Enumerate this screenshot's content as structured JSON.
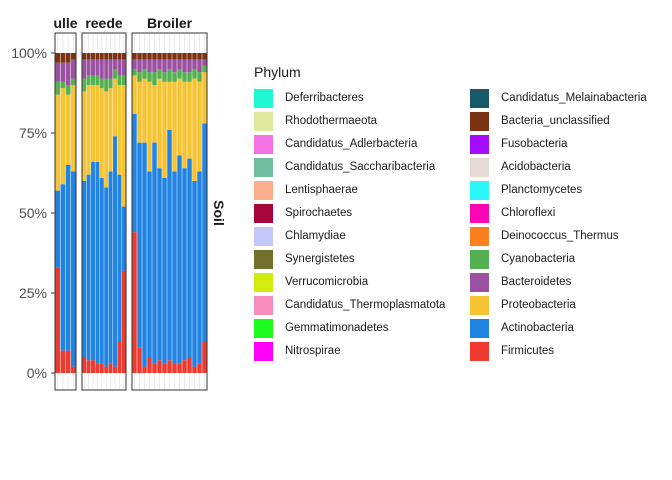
{
  "chart_data": {
    "type": "bar",
    "stacked": true,
    "facet_labels": [
      "ulle",
      "reede",
      "Broiler"
    ],
    "strip_label_right": "Soil",
    "y_ticks": [
      "0%",
      "25%",
      "50%",
      "75%",
      "100%"
    ],
    "ylim": [
      0,
      100
    ],
    "legend_title": "Phylum",
    "legend_position": "right",
    "phyla": [
      {
        "name": "Deferribacteres",
        "color": "#1FF8D3"
      },
      {
        "name": "Rhodothermaeota",
        "color": "#DFE89D"
      },
      {
        "name": "Candidatus_Adlerbacteria",
        "color": "#F372E4"
      },
      {
        "name": "Candidatus_Saccharibacteria",
        "color": "#71BEA3"
      },
      {
        "name": "Lentisphaerae",
        "color": "#F9AF8E"
      },
      {
        "name": "Spirochaetes",
        "color": "#A6063B"
      },
      {
        "name": "Chlamydiae",
        "color": "#C4C8F8"
      },
      {
        "name": "Synergistetes",
        "color": "#726F2C"
      },
      {
        "name": "Verrucomicrobia",
        "color": "#D2EC0D"
      },
      {
        "name": "Candidatus_Thermoplasmatota",
        "color": "#F58CBC"
      },
      {
        "name": "Gemmatimonadetes",
        "color": "#1EFB1F"
      },
      {
        "name": "Nitrospirae",
        "color": "#FF00F7"
      },
      {
        "name": "Candidatus_Melainabacteria",
        "color": "#175966"
      },
      {
        "name": "Bacteria_unclassified",
        "color": "#7A3213"
      },
      {
        "name": "Fusobacteria",
        "color": "#A20CFB"
      },
      {
        "name": "Acidobacteria",
        "color": "#E5DAD5"
      },
      {
        "name": "Planctomycetes",
        "color": "#2CF7FB"
      },
      {
        "name": "Chloroflexi",
        "color": "#FC05B5"
      },
      {
        "name": "Deinococcus_Thermus",
        "color": "#FB7E1F"
      },
      {
        "name": "Cyanobacteria",
        "color": "#55B052"
      },
      {
        "name": "Bacteroidetes",
        "color": "#9B52A2"
      },
      {
        "name": "Proteobacteria",
        "color": "#F6C333"
      },
      {
        "name": "Actinobacteria",
        "color": "#2284E2"
      },
      {
        "name": "Firmicutes",
        "color": "#EE3A2F"
      }
    ],
    "facets": [
      {
        "samples": [
          {
            "Firmicutes": 33,
            "Actinobacteria": 24,
            "Proteobacteria": 30,
            "Cyanobacteria": 4,
            "Bacteroidetes": 6,
            "Other": 3
          },
          {
            "Firmicutes": 7,
            "Actinobacteria": 52,
            "Proteobacteria": 30,
            "Cyanobacteria": 2,
            "Bacteroidetes": 6,
            "Other": 3
          },
          {
            "Firmicutes": 7,
            "Actinobacteria": 58,
            "Proteobacteria": 22,
            "Cyanobacteria": 3,
            "Bacteroidetes": 7,
            "Other": 3
          },
          {
            "Firmicutes": 2,
            "Actinobacteria": 61,
            "Proteobacteria": 27,
            "Cyanobacteria": 2,
            "Bacteroidetes": 6,
            "Other": 2
          }
        ]
      },
      {
        "samples": [
          {
            "Firmicutes": 5,
            "Actinobacteria": 55,
            "Proteobacteria": 28,
            "Cyanobacteria": 4,
            "Bacteroidetes": 6,
            "Other": 2
          },
          {
            "Firmicutes": 4,
            "Actinobacteria": 58,
            "Proteobacteria": 28,
            "Cyanobacteria": 3,
            "Bacteroidetes": 5,
            "Other": 2
          },
          {
            "Firmicutes": 4,
            "Actinobacteria": 62,
            "Proteobacteria": 24,
            "Cyanobacteria": 3,
            "Bacteroidetes": 5,
            "Other": 2
          },
          {
            "Firmicutes": 3,
            "Actinobacteria": 63,
            "Proteobacteria": 24,
            "Cyanobacteria": 3,
            "Bacteroidetes": 5,
            "Other": 2
          },
          {
            "Firmicutes": 3,
            "Actinobacteria": 58,
            "Proteobacteria": 28,
            "Cyanobacteria": 3,
            "Bacteroidetes": 6,
            "Other": 2
          },
          {
            "Firmicutes": 2,
            "Actinobacteria": 56,
            "Proteobacteria": 30,
            "Cyanobacteria": 4,
            "Bacteroidetes": 6,
            "Other": 2
          },
          {
            "Firmicutes": 3,
            "Actinobacteria": 60,
            "Proteobacteria": 26,
            "Cyanobacteria": 3,
            "Bacteroidetes": 6,
            "Other": 2
          },
          {
            "Firmicutes": 2,
            "Actinobacteria": 72,
            "Proteobacteria": 18,
            "Cyanobacteria": 3,
            "Bacteroidetes": 3,
            "Other": 2
          },
          {
            "Firmicutes": 10,
            "Actinobacteria": 52,
            "Proteobacteria": 28,
            "Cyanobacteria": 3,
            "Bacteroidetes": 5,
            "Other": 2
          },
          {
            "Firmicutes": 32,
            "Actinobacteria": 20,
            "Proteobacteria": 38,
            "Cyanobacteria": 3,
            "Bacteroidetes": 5,
            "Other": 2
          }
        ]
      },
      {
        "samples": [
          {
            "Firmicutes": 44,
            "Actinobacteria": 37,
            "Proteobacteria": 12,
            "Cyanobacteria": 2,
            "Bacteroidetes": 3,
            "Other": 2
          },
          {
            "Firmicutes": 8,
            "Actinobacteria": 64,
            "Proteobacteria": 19,
            "Cyanobacteria": 3,
            "Bacteroidetes": 4,
            "Other": 2
          },
          {
            "Firmicutes": 2,
            "Actinobacteria": 70,
            "Proteobacteria": 20,
            "Cyanobacteria": 3,
            "Bacteroidetes": 3,
            "Other": 2
          },
          {
            "Firmicutes": 5,
            "Actinobacteria": 58,
            "Proteobacteria": 28,
            "Cyanobacteria": 3,
            "Bacteroidetes": 4,
            "Other": 2
          },
          {
            "Firmicutes": 3,
            "Actinobacteria": 69,
            "Proteobacteria": 18,
            "Cyanobacteria": 4,
            "Bacteroidetes": 4,
            "Other": 2
          },
          {
            "Firmicutes": 4,
            "Actinobacteria": 60,
            "Proteobacteria": 28,
            "Cyanobacteria": 3,
            "Bacteroidetes": 3,
            "Other": 2
          },
          {
            "Firmicutes": 3,
            "Actinobacteria": 58,
            "Proteobacteria": 30,
            "Cyanobacteria": 3,
            "Bacteroidetes": 4,
            "Other": 2
          },
          {
            "Firmicutes": 4,
            "Actinobacteria": 72,
            "Proteobacteria": 15,
            "Cyanobacteria": 4,
            "Bacteroidetes": 3,
            "Other": 2
          },
          {
            "Firmicutes": 3,
            "Actinobacteria": 60,
            "Proteobacteria": 28,
            "Cyanobacteria": 3,
            "Bacteroidetes": 4,
            "Other": 2
          },
          {
            "Firmicutes": 3,
            "Actinobacteria": 65,
            "Proteobacteria": 24,
            "Cyanobacteria": 3,
            "Bacteroidetes": 3,
            "Other": 2
          },
          {
            "Firmicutes": 4,
            "Actinobacteria": 60,
            "Proteobacteria": 27,
            "Cyanobacteria": 3,
            "Bacteroidetes": 4,
            "Other": 2
          },
          {
            "Firmicutes": 5,
            "Actinobacteria": 62,
            "Proteobacteria": 24,
            "Cyanobacteria": 3,
            "Bacteroidetes": 4,
            "Other": 2
          },
          {
            "Firmicutes": 2,
            "Actinobacteria": 58,
            "Proteobacteria": 32,
            "Cyanobacteria": 3,
            "Bacteroidetes": 3,
            "Other": 2
          },
          {
            "Firmicutes": 3,
            "Actinobacteria": 60,
            "Proteobacteria": 28,
            "Cyanobacteria": 3,
            "Bacteroidetes": 4,
            "Other": 2
          },
          {
            "Firmicutes": 10,
            "Actinobacteria": 68,
            "Proteobacteria": 16,
            "Cyanobacteria": 2,
            "Bacteroidetes": 2,
            "Other": 2
          }
        ]
      }
    ]
  }
}
